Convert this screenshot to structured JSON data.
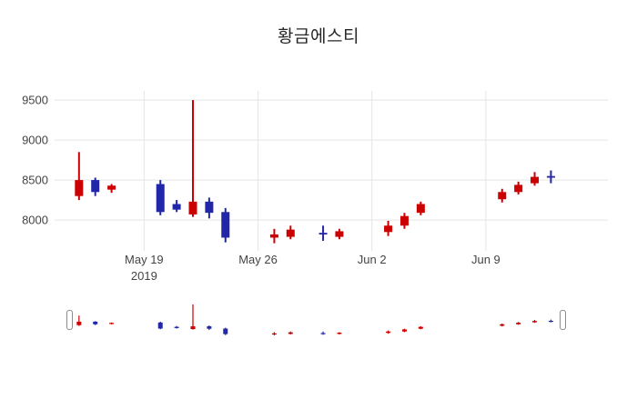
{
  "chart_data": {
    "type": "candlestick",
    "title": "황금에스티",
    "increasing_color": "#cc0000",
    "decreasing_color": "#2127a8",
    "grid_color": "#e5e5e5",
    "tick_color": "#444444",
    "ylim": [
      7660,
      9615
    ],
    "yticks": [
      8000,
      8500,
      9000,
      9500
    ],
    "xticks": [
      {
        "date": "2019-05-19",
        "label": "May 19",
        "sublabel": "2019"
      },
      {
        "date": "2019-05-26",
        "label": "May 26"
      },
      {
        "date": "2019-06-02",
        "label": "Jun 2"
      },
      {
        "date": "2019-06-09",
        "label": "Jun 9"
      }
    ],
    "x_range": [
      "2019-05-13T12:00",
      "2019-06-16T12:00"
    ],
    "rangeslider": true,
    "candles": [
      {
        "date": "2019-05-15",
        "open": 8300,
        "high": 8850,
        "low": 8250,
        "close": 8500
      },
      {
        "date": "2019-05-16",
        "open": 8500,
        "high": 8530,
        "low": 8300,
        "close": 8350
      },
      {
        "date": "2019-05-17",
        "open": 8380,
        "high": 8450,
        "low": 8340,
        "close": 8430
      },
      {
        "date": "2019-05-20",
        "open": 8450,
        "high": 8500,
        "low": 8060,
        "close": 8100
      },
      {
        "date": "2019-05-21",
        "open": 8200,
        "high": 8250,
        "low": 8100,
        "close": 8130
      },
      {
        "date": "2019-05-22",
        "open": 8070,
        "high": 9500,
        "low": 8040,
        "close": 8230
      },
      {
        "date": "2019-05-23",
        "open": 8230,
        "high": 8280,
        "low": 8020,
        "close": 8090
      },
      {
        "date": "2019-05-24",
        "open": 8100,
        "high": 8150,
        "low": 7720,
        "close": 7780
      },
      {
        "date": "2019-05-27",
        "open": 7780,
        "high": 7890,
        "low": 7710,
        "close": 7820
      },
      {
        "date": "2019-05-28",
        "open": 7790,
        "high": 7930,
        "low": 7760,
        "close": 7880
      },
      {
        "date": "2019-05-30",
        "open": 7840,
        "high": 7930,
        "low": 7740,
        "close": 7830
      },
      {
        "date": "2019-05-31",
        "open": 7790,
        "high": 7890,
        "low": 7760,
        "close": 7860
      },
      {
        "date": "2019-06-03",
        "open": 7850,
        "high": 7990,
        "low": 7800,
        "close": 7930
      },
      {
        "date": "2019-06-04",
        "open": 7930,
        "high": 8090,
        "low": 7890,
        "close": 8050
      },
      {
        "date": "2019-06-05",
        "open": 8090,
        "high": 8230,
        "low": 8060,
        "close": 8200
      },
      {
        "date": "2019-06-10",
        "open": 8260,
        "high": 8390,
        "low": 8220,
        "close": 8350
      },
      {
        "date": "2019-06-11",
        "open": 8350,
        "high": 8480,
        "low": 8320,
        "close": 8440
      },
      {
        "date": "2019-06-12",
        "open": 8460,
        "high": 8600,
        "low": 8430,
        "close": 8540
      },
      {
        "date": "2019-06-13",
        "open": 8550,
        "high": 8620,
        "low": 8460,
        "close": 8530
      }
    ]
  }
}
